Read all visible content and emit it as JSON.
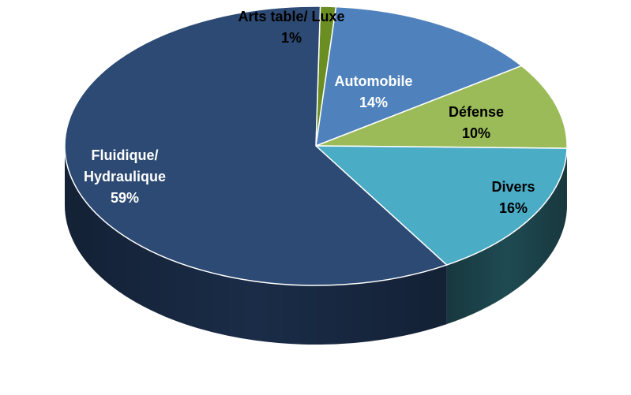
{
  "chart_data": {
    "type": "pie",
    "title": "",
    "slices": [
      {
        "name": "Arts table/ Luxe",
        "value": 1,
        "label_value": "1%",
        "color": "#6b8e23",
        "side_color": "#44601a",
        "label_color": "#000000"
      },
      {
        "name": "Automobile",
        "value": 14,
        "label_value": "14%",
        "color": "#4f81bd",
        "side_color": "#2e5282",
        "label_color": "#ffffff"
      },
      {
        "name": "Défense",
        "value": 10,
        "label_value": "10%",
        "color": "#9bbb59",
        "side_color": "#5f7a2e",
        "label_color": "#000000"
      },
      {
        "name": "Divers",
        "value": 16,
        "label_value": "16%",
        "color": "#4bacc6",
        "side_color": "#1f4a52",
        "label_color": "#000000"
      },
      {
        "name": "Fluidique/ Hydraulique",
        "name_lines": [
          "Fluidique/",
          "Hydraulique"
        ],
        "value": 59,
        "label_value": "59%",
        "color": "#2c4a73",
        "side_color": "#1a2c47",
        "label_color": "#ffffff"
      }
    ],
    "start_angle_deg": -89,
    "style": "3d"
  }
}
